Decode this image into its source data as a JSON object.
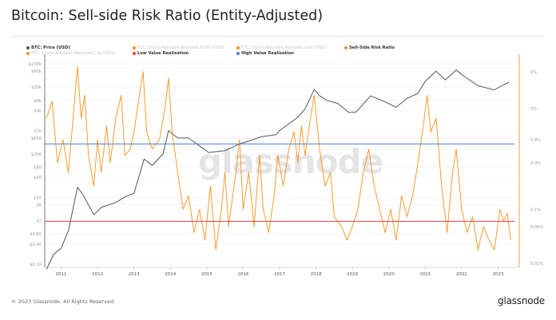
{
  "title": "Bitcoin: Sell-side Risk Ratio (Entity-Adjusted)",
  "legend": [
    {
      "label": "BTC: Price [USD]",
      "color": "#555555",
      "active": true
    },
    {
      "label": "BTC: Entity-Adjusted Realized Profit [USD]",
      "color": "#f7931a",
      "active": false
    },
    {
      "label": "BTC: Entity-Adjusted Realized Loss [USD]",
      "color": "#f7931a",
      "active": false
    },
    {
      "label": "Sell-Side Risk Ratio",
      "color": "#f7931a",
      "active": true
    },
    {
      "label": "BTC: Entity-Adjusted Realized Cap [USD]",
      "color": "#f7931a",
      "active": false
    },
    {
      "label": "Low Value Realization",
      "color": "#e8434a",
      "active": true
    },
    {
      "label": "High Value Realization",
      "color": "#4a7fd6",
      "active": true
    }
  ],
  "footer": "© 2023 Glassnode. All Rights Reserved.",
  "logo": "glassnode",
  "watermark": "glassnode",
  "chart_data": {
    "type": "line",
    "title": "Bitcoin: Sell-side Risk Ratio (Entity-Adjusted)",
    "xlim": [
      2010.55,
      2023.45
    ],
    "x_ticks": [
      "2011",
      "2012",
      "2013",
      "2014",
      "2015",
      "2016",
      "2017",
      "2018",
      "2019",
      "2020",
      "2021",
      "2022",
      "2023"
    ],
    "left_axis": {
      "scale": "log",
      "ylim": [
        0.08,
        155000
      ],
      "ticks": [
        {
          "v": 100000,
          "l": "$100k"
        },
        {
          "v": 60000,
          "l": "$60k"
        },
        {
          "v": 20000,
          "l": "$20k"
        },
        {
          "v": 8000,
          "l": "$8k"
        },
        {
          "v": 4000,
          "l": "$4k"
        },
        {
          "v": 1000,
          "l": "$1k"
        },
        {
          "v": 600,
          "l": "$600"
        },
        {
          "v": 200,
          "l": "$200"
        },
        {
          "v": 80,
          "l": "$80"
        },
        {
          "v": 40,
          "l": "$40"
        },
        {
          "v": 10,
          "l": "$10"
        },
        {
          "v": 6,
          "l": "$6"
        },
        {
          "v": 2,
          "l": "$2"
        },
        {
          "v": 0.8,
          "l": "$0.80"
        },
        {
          "v": 0.4,
          "l": "$0.40"
        },
        {
          "v": 0.1,
          "l": "$0.10"
        }
      ]
    },
    "right_axis": {
      "scale": "log",
      "ylim": [
        0.0178,
        9.2
      ],
      "ticks": [
        {
          "v": 6,
          "l": "6%"
        },
        {
          "v": 2,
          "l": "2%"
        },
        {
          "v": 0.8,
          "l": "0.8%"
        },
        {
          "v": 0.4,
          "l": "0.4%"
        },
        {
          "v": 0.1,
          "l": "0.1%"
        },
        {
          "v": 0.06,
          "l": "0.06%"
        },
        {
          "v": 0.02,
          "l": "0.02%"
        }
      ]
    },
    "grid": true,
    "series": [
      {
        "name": "BTC: Price [USD]",
        "axis": "left",
        "color": "#555555",
        "x": [
          2010.6,
          2010.8,
          2011.0,
          2011.2,
          2011.45,
          2011.6,
          2011.9,
          2012.1,
          2012.5,
          2012.8,
          2013.0,
          2013.28,
          2013.5,
          2013.8,
          2013.95,
          2014.2,
          2014.5,
          2014.8,
          2015.05,
          2015.5,
          2015.9,
          2016.0,
          2016.5,
          2016.9,
          2017.0,
          2017.5,
          2017.7,
          2017.95,
          2018.1,
          2018.3,
          2018.6,
          2018.9,
          2019.1,
          2019.5,
          2019.9,
          2020.2,
          2020.5,
          2020.8,
          2021.0,
          2021.3,
          2021.55,
          2021.85,
          2022.1,
          2022.45,
          2022.9,
          2023.1,
          2023.3
        ],
        "y": [
          0.07,
          0.2,
          0.3,
          1,
          20,
          12,
          3,
          5,
          7,
          11,
          13,
          140,
          90,
          200,
          1000,
          600,
          600,
          350,
          220,
          250,
          400,
          430,
          650,
          750,
          1000,
          2500,
          4500,
          17000,
          11000,
          8000,
          6500,
          3500,
          3600,
          11000,
          7200,
          5000,
          9200,
          13000,
          30000,
          60000,
          33000,
          65000,
          40000,
          22000,
          16500,
          22000,
          28000
        ]
      },
      {
        "name": "Sell-Side Risk Ratio",
        "axis": "right",
        "unit": "%",
        "color": "#f7931a",
        "x": [
          2010.6,
          2010.75,
          2010.9,
          2011.05,
          2011.2,
          2011.35,
          2011.45,
          2011.55,
          2011.65,
          2011.75,
          2011.9,
          2012.0,
          2012.1,
          2012.25,
          2012.35,
          2012.5,
          2012.65,
          2012.75,
          2012.9,
          2013.0,
          2013.15,
          2013.25,
          2013.35,
          2013.5,
          2013.7,
          2013.85,
          2013.95,
          2014.05,
          2014.2,
          2014.35,
          2014.5,
          2014.65,
          2014.8,
          2014.95,
          2015.1,
          2015.25,
          2015.4,
          2015.5,
          2015.6,
          2015.8,
          2015.9,
          2016.0,
          2016.15,
          2016.3,
          2016.45,
          2016.55,
          2016.7,
          2016.85,
          2016.95,
          2017.1,
          2017.25,
          2017.4,
          2017.5,
          2017.6,
          2017.7,
          2017.85,
          2017.95,
          2018.1,
          2018.25,
          2018.4,
          2018.5,
          2018.7,
          2018.85,
          2019.0,
          2019.15,
          2019.3,
          2019.45,
          2019.6,
          2019.75,
          2019.9,
          2020.05,
          2020.2,
          2020.35,
          2020.5,
          2020.65,
          2020.8,
          2020.95,
          2021.05,
          2021.15,
          2021.3,
          2021.45,
          2021.6,
          2021.75,
          2021.85,
          2022.0,
          2022.15,
          2022.3,
          2022.45,
          2022.6,
          2022.75,
          2022.9,
          2023.05,
          2023.15,
          2023.25,
          2023.35
        ],
        "y": [
          1.5,
          2.5,
          0.4,
          0.8,
          0.3,
          2,
          7,
          1.5,
          3,
          0.5,
          0.2,
          0.8,
          0.3,
          1.2,
          0.4,
          1.5,
          3,
          0.5,
          0.6,
          1,
          3,
          6,
          1,
          0.6,
          0.8,
          2,
          5,
          1,
          0.3,
          0.1,
          0.15,
          0.05,
          0.1,
          0.04,
          0.2,
          0.03,
          0.1,
          0.3,
          0.06,
          0.3,
          0.8,
          0.1,
          0.3,
          0.06,
          0.5,
          0.1,
          0.05,
          0.15,
          0.5,
          0.2,
          0.6,
          1,
          0.4,
          1.2,
          0.5,
          1.5,
          3,
          0.6,
          0.2,
          0.3,
          0.08,
          0.06,
          0.04,
          0.06,
          0.1,
          0.3,
          0.6,
          0.2,
          0.1,
          0.05,
          0.1,
          0.04,
          0.15,
          0.08,
          0.15,
          0.4,
          1.2,
          3,
          1,
          1.5,
          0.2,
          0.05,
          0.3,
          0.6,
          0.1,
          0.05,
          0.08,
          0.03,
          0.06,
          0.04,
          0.03,
          0.1,
          0.07,
          0.09,
          0.04
        ]
      },
      {
        "name": "High Value Realization",
        "axis": "right",
        "color": "#4a7fd6",
        "constant": 0.7
      },
      {
        "name": "Low Value Realization",
        "axis": "right",
        "color": "#e8434a",
        "constant": 0.07
      }
    ]
  }
}
